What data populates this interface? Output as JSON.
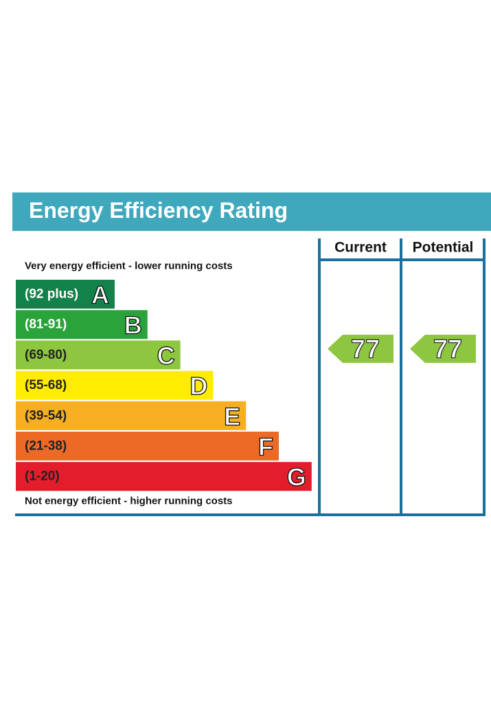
{
  "title": "Energy Efficiency Rating",
  "columns": [
    "Current",
    "Potential"
  ],
  "top_note": "Very energy efficient - lower running costs",
  "bottom_note": "Not energy efficient - higher running costs",
  "bands": [
    {
      "range": "(92 plus)",
      "letter": "A",
      "color": "#13824a"
    },
    {
      "range": "(81-91)",
      "letter": "B",
      "color": "#2aa33a"
    },
    {
      "range": "(69-80)",
      "letter": "C",
      "color": "#8dc63f"
    },
    {
      "range": "(55-68)",
      "letter": "D",
      "color": "#ffec00"
    },
    {
      "range": "(39-54)",
      "letter": "E",
      "color": "#f6ae23"
    },
    {
      "range": "(21-38)",
      "letter": "F",
      "color": "#ec6a26"
    },
    {
      "range": "(1-20)",
      "letter": "G",
      "color": "#e31d2b"
    }
  ],
  "ratings": [
    {
      "value": 77,
      "color": "#8dc63f"
    },
    {
      "value": 77,
      "color": "#8dc63f"
    }
  ]
}
